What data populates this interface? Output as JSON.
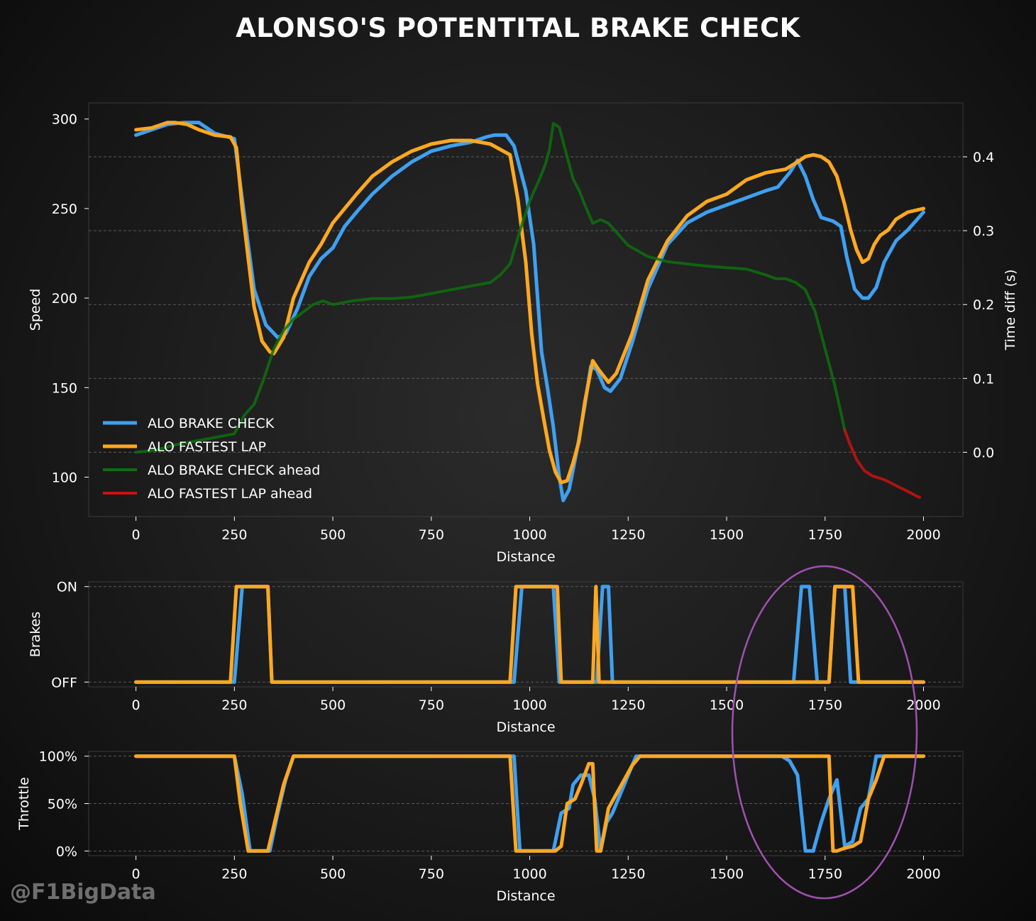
{
  "title": "ALONSO'S POTENTITAL BRAKE CHECK",
  "watermark": "@F1BigData",
  "colors": {
    "brake_check": "#3fa0f0",
    "fastest_lap": "#ffa820",
    "brake_check_ahead": "#0e6e0e",
    "fastest_lap_ahead": "#cc1111",
    "annotation_ellipse": "#a050b0"
  },
  "chart_data": [
    {
      "type": "line",
      "xlabel": "Distance",
      "ylabel": "Speed",
      "y2label": "Time diff (s)",
      "xlim": [
        -120,
        2100
      ],
      "ylim": [
        78,
        309
      ],
      "y2lim": [
        -0.087,
        0.473
      ],
      "xticks": [
        0,
        250,
        500,
        750,
        1000,
        1250,
        1500,
        1750,
        2000
      ],
      "yticks": [
        100,
        150,
        200,
        250,
        300
      ],
      "y2ticks": [
        0.0,
        0.1,
        0.2,
        0.3,
        0.4
      ],
      "y2ticklabels": [
        "0.0",
        "0.1",
        "0.2",
        "0.3",
        "0.4"
      ],
      "grid": true,
      "legend": "lower-left",
      "series": [
        {
          "name": "ALO BRAKE CHECK",
          "axis": "left",
          "x": [
            0,
            40,
            80,
            120,
            160,
            200,
            250,
            270,
            300,
            330,
            360,
            380,
            410,
            440,
            470,
            500,
            530,
            560,
            600,
            650,
            700,
            750,
            800,
            850,
            890,
            910,
            940,
            960,
            990,
            1010,
            1030,
            1045,
            1060,
            1075,
            1085,
            1100,
            1120,
            1140,
            1155,
            1170,
            1190,
            1205,
            1230,
            1260,
            1300,
            1350,
            1400,
            1450,
            1500,
            1550,
            1600,
            1630,
            1660,
            1680,
            1700,
            1720,
            1740,
            1770,
            1790,
            1805,
            1825,
            1845,
            1860,
            1880,
            1900,
            1930,
            1960,
            2000
          ],
          "values": [
            291,
            294,
            297,
            298,
            298,
            292,
            289,
            255,
            205,
            185,
            178,
            180,
            194,
            212,
            222,
            228,
            240,
            248,
            258,
            268,
            276,
            282,
            285,
            287,
            290,
            291,
            291,
            285,
            260,
            230,
            170,
            150,
            128,
            100,
            87,
            93,
            115,
            140,
            162,
            160,
            150,
            148,
            155,
            175,
            205,
            230,
            242,
            248,
            252,
            256,
            260,
            262,
            270,
            277,
            268,
            255,
            245,
            243,
            240,
            223,
            205,
            200,
            200,
            206,
            220,
            232,
            238,
            248
          ]
        },
        {
          "name": "ALO FASTEST LAP",
          "axis": "left",
          "x": [
            0,
            40,
            80,
            100,
            130,
            160,
            200,
            240,
            255,
            270,
            300,
            320,
            340,
            350,
            375,
            400,
            440,
            470,
            500,
            530,
            560,
            600,
            650,
            700,
            750,
            800,
            850,
            900,
            950,
            970,
            990,
            1005,
            1020,
            1035,
            1050,
            1065,
            1080,
            1095,
            1110,
            1125,
            1140,
            1160,
            1175,
            1200,
            1220,
            1260,
            1300,
            1350,
            1400,
            1450,
            1500,
            1550,
            1600,
            1650,
            1680,
            1700,
            1720,
            1740,
            1760,
            1780,
            1800,
            1815,
            1830,
            1845,
            1860,
            1875,
            1890,
            1910,
            1930,
            1960,
            2000
          ],
          "values": [
            294,
            295,
            298,
            298,
            297,
            294,
            291,
            290,
            284,
            250,
            195,
            176,
            170,
            169,
            178,
            200,
            220,
            230,
            242,
            250,
            258,
            268,
            276,
            282,
            286,
            288,
            288,
            286,
            280,
            255,
            220,
            180,
            152,
            133,
            115,
            103,
            97,
            98,
            108,
            120,
            142,
            165,
            160,
            153,
            158,
            180,
            210,
            232,
            246,
            254,
            258,
            266,
            270,
            272,
            276,
            279,
            280,
            279,
            276,
            268,
            252,
            238,
            227,
            220,
            222,
            230,
            235,
            238,
            244,
            248,
            250
          ]
        },
        {
          "name": "ALO BRAKE CHECK ahead",
          "axis": "right",
          "x": [
            0,
            50,
            100,
            150,
            200,
            250,
            275,
            300,
            325,
            350,
            375,
            400,
            425,
            450,
            475,
            500,
            550,
            600,
            650,
            700,
            750,
            800,
            850,
            900,
            925,
            950,
            975,
            1000,
            1025,
            1040,
            1050,
            1060,
            1075,
            1090,
            1110,
            1125,
            1140,
            1160,
            1180,
            1200,
            1225,
            1250,
            1300,
            1350,
            1400,
            1450,
            1500,
            1550,
            1600,
            1625,
            1650,
            1675,
            1700,
            1725,
            1750,
            1775,
            1800
          ],
          "values": [
            0.0,
            0.003,
            0.01,
            0.015,
            0.02,
            0.025,
            0.05,
            0.065,
            0.1,
            0.14,
            0.165,
            0.18,
            0.19,
            0.2,
            0.205,
            0.2,
            0.205,
            0.208,
            0.208,
            0.21,
            0.215,
            0.22,
            0.225,
            0.23,
            0.24,
            0.255,
            0.3,
            0.34,
            0.37,
            0.39,
            0.41,
            0.445,
            0.44,
            0.41,
            0.37,
            0.355,
            0.335,
            0.31,
            0.315,
            0.31,
            0.295,
            0.28,
            0.265,
            0.258,
            0.255,
            0.252,
            0.25,
            0.248,
            0.24,
            0.235,
            0.235,
            0.23,
            0.22,
            0.19,
            0.14,
            0.09,
            0.03
          ]
        },
        {
          "name": "ALO FASTEST LAP ahead",
          "axis": "right",
          "x": [
            1800,
            1810,
            1830,
            1850,
            1870,
            1900,
            1930,
            1960,
            1985,
            1990
          ],
          "values": [
            0.03,
            0.015,
            -0.01,
            -0.025,
            -0.032,
            -0.037,
            -0.045,
            -0.053,
            -0.06,
            -0.061
          ]
        }
      ]
    },
    {
      "type": "line",
      "xlabel": "Distance",
      "ylabel": "Brakes",
      "xlim": [
        -120,
        2100
      ],
      "ylim": [
        -0.05,
        1.05
      ],
      "yticks": [
        0,
        1
      ],
      "yticklabels": [
        "OFF",
        "ON"
      ],
      "xticks": [
        0,
        250,
        500,
        750,
        1000,
        1250,
        1500,
        1750,
        2000
      ],
      "grid": true,
      "series": [
        {
          "name": "ALO BRAKE CHECK",
          "x": [
            0,
            250,
            270,
            335,
            345,
            960,
            980,
            1060,
            1075,
            1165,
            1170,
            1185,
            1190,
            1200,
            1210,
            1670,
            1690,
            1710,
            1730,
            1760,
            1775,
            1800,
            1815,
            2000
          ],
          "values": [
            0,
            0,
            1,
            1,
            0,
            0,
            1,
            1,
            0,
            0,
            0,
            1,
            1,
            1,
            0,
            0,
            1,
            1,
            0,
            0,
            1,
            1,
            0,
            0
          ]
        },
        {
          "name": "ALO FASTEST LAP",
          "x": [
            0,
            240,
            255,
            335,
            345,
            950,
            965,
            1070,
            1080,
            1160,
            1168,
            1176,
            1185,
            1760,
            1775,
            1820,
            1835,
            2000
          ],
          "values": [
            0,
            0,
            1,
            1,
            0,
            0,
            1,
            1,
            0,
            0,
            1,
            0,
            0,
            0,
            1,
            1,
            0,
            0
          ]
        }
      ]
    },
    {
      "type": "line",
      "xlabel": "Distance",
      "ylabel": "Throttle",
      "xlim": [
        -120,
        2100
      ],
      "ylim": [
        -5,
        105
      ],
      "yticks": [
        0,
        50,
        100
      ],
      "yticklabels": [
        "0%",
        "50%",
        "100%"
      ],
      "xticks": [
        0,
        250,
        500,
        750,
        1000,
        1250,
        1500,
        1750,
        2000
      ],
      "grid": true,
      "series": [
        {
          "name": "ALO BRAKE CHECK",
          "x": [
            0,
            250,
            270,
            290,
            340,
            360,
            380,
            400,
            960,
            975,
            1060,
            1080,
            1100,
            1110,
            1130,
            1150,
            1165,
            1180,
            1195,
            1210,
            1250,
            1270,
            1300,
            1640,
            1660,
            1680,
            1700,
            1720,
            1740,
            1760,
            1780,
            1800,
            1820,
            1840,
            1860,
            1880,
            1900,
            2000
          ],
          "values": [
            100,
            100,
            60,
            0,
            0,
            40,
            75,
            100,
            100,
            0,
            0,
            40,
            45,
            70,
            80,
            80,
            55,
            0,
            30,
            40,
            80,
            100,
            100,
            100,
            95,
            80,
            0,
            0,
            30,
            55,
            75,
            5,
            10,
            45,
            55,
            100,
            100,
            100
          ]
        },
        {
          "name": "ALO FASTEST LAP",
          "x": [
            0,
            250,
            265,
            285,
            335,
            355,
            375,
            400,
            950,
            965,
            1065,
            1080,
            1095,
            1115,
            1130,
            1150,
            1160,
            1170,
            1180,
            1200,
            1220,
            1240,
            1260,
            1280,
            1300,
            1760,
            1770,
            1780,
            1800,
            1820,
            1840,
            1860,
            1880,
            1900,
            2000
          ],
          "values": [
            100,
            100,
            50,
            0,
            0,
            35,
            70,
            100,
            100,
            0,
            0,
            5,
            50,
            55,
            70,
            92,
            92,
            0,
            0,
            45,
            60,
            75,
            90,
            100,
            100,
            100,
            0,
            0,
            3,
            5,
            10,
            55,
            75,
            100,
            100
          ]
        }
      ]
    }
  ]
}
